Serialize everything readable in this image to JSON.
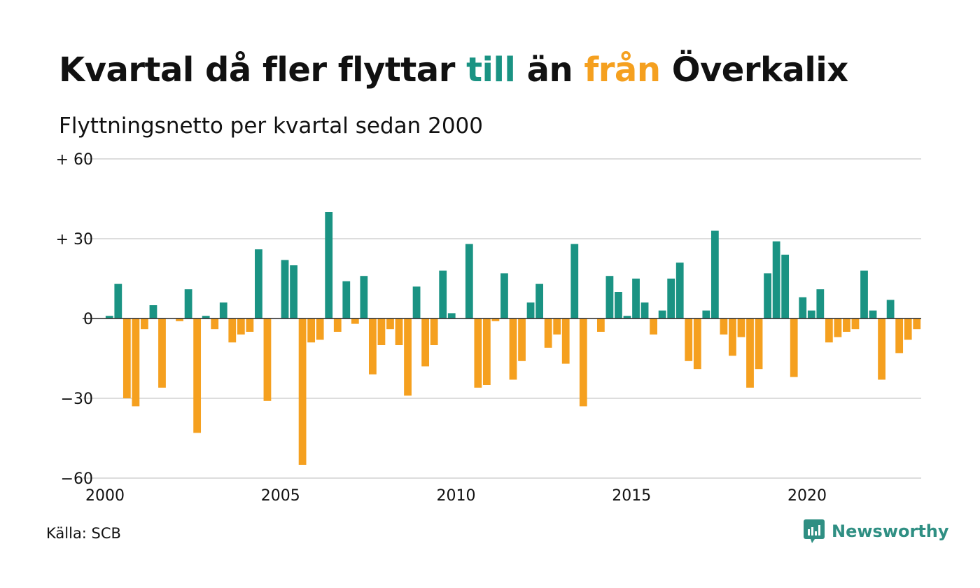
{
  "title": {
    "part1": "Kvartal då fler flyttar ",
    "highlight_in": "till",
    "part2": " än ",
    "highlight_out": "från",
    "part3": " Överkalix"
  },
  "subtitle": "Flyttningsnetto per kvartal sedan 2000",
  "source": "Källa: SCB",
  "brand": {
    "name": "Newsworthy",
    "icon": "newsworthy-logo-icon"
  },
  "colors": {
    "positive": "#1a9383",
    "negative": "#f5a01f",
    "grid": "#dddddd",
    "zero_line": "#222222",
    "brand": "#2f8f83"
  },
  "chart_data": {
    "type": "bar",
    "title": "Kvartal då fler flyttar till än från Överkalix",
    "subtitle": "Flyttningsnetto per kvartal sedan 2000",
    "xlabel": "",
    "ylabel": "",
    "ylim": [
      -60,
      60
    ],
    "yticks": [
      {
        "value": 60,
        "label": "+ 60"
      },
      {
        "value": 30,
        "label": "+ 30"
      },
      {
        "value": 0,
        "label": "0"
      },
      {
        "value": -30,
        "label": "−30"
      },
      {
        "value": -60,
        "label": "−60"
      }
    ],
    "xlim": [
      2000,
      2023.25
    ],
    "xticks": [
      {
        "value": 2000,
        "label": "2000"
      },
      {
        "value": 2005,
        "label": "2005"
      },
      {
        "value": 2010,
        "label": "2010"
      },
      {
        "value": 2015,
        "label": "2015"
      },
      {
        "value": 2020,
        "label": "2020"
      }
    ],
    "grid": true,
    "legend": "none",
    "start_year": 2000,
    "quarters_per_year": 4,
    "values": [
      1,
      13,
      -30,
      -33,
      -4,
      5,
      -26,
      0,
      -1,
      11,
      -43,
      1,
      -4,
      6,
      -9,
      -6,
      -5,
      26,
      -31,
      0,
      22,
      20,
      -55,
      -9,
      -8,
      40,
      -5,
      14,
      -2,
      16,
      -21,
      -10,
      -4,
      -10,
      -29,
      12,
      -18,
      -10,
      18,
      2,
      0,
      28,
      -26,
      -25,
      -1,
      17,
      -23,
      -16,
      6,
      13,
      -11,
      -6,
      -17,
      28,
      -33,
      0,
      -5,
      16,
      10,
      1,
      15,
      6,
      -6,
      3,
      15,
      21,
      -16,
      -19,
      3,
      33,
      -6,
      -14,
      -7,
      -26,
      -19,
      17,
      29,
      24,
      -22,
      8,
      3,
      11,
      -9,
      -7,
      -5,
      -4,
      18,
      3,
      -23,
      7,
      -13,
      -8,
      -4
    ]
  }
}
